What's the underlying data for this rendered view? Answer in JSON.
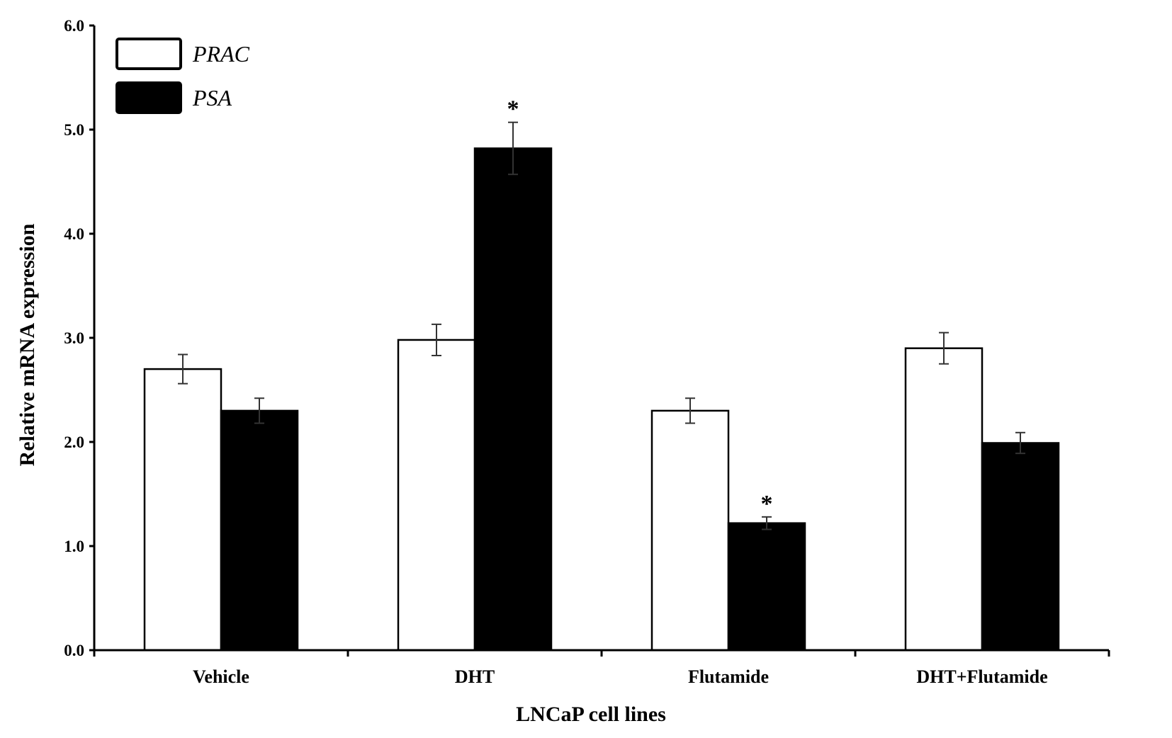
{
  "chart_data": {
    "type": "bar",
    "xlabel": "LNCaP cell lines",
    "ylabel": "Relative mRNA expression",
    "ylim": [
      0,
      6
    ],
    "yticks": [
      "0.0",
      "1.0",
      "2.0",
      "3.0",
      "4.0",
      "5.0",
      "6.0"
    ],
    "categories": [
      "Vehicle",
      "DHT",
      "Flutamide",
      "DHT+Flutamide"
    ],
    "series": [
      {
        "name": "PRAC",
        "color": "#ffffff",
        "values": [
          2.7,
          2.98,
          2.3,
          2.9
        ],
        "errors": [
          0.14,
          0.15,
          0.12,
          0.15
        ],
        "annotations": [
          "",
          "",
          "",
          ""
        ]
      },
      {
        "name": "PSA",
        "color": "#000000",
        "values": [
          2.3,
          4.82,
          1.22,
          1.99
        ],
        "errors": [
          0.12,
          0.25,
          0.06,
          0.1
        ],
        "annotations": [
          "",
          "*",
          "*",
          ""
        ]
      }
    ],
    "legend": "top-left",
    "grid": false
  }
}
